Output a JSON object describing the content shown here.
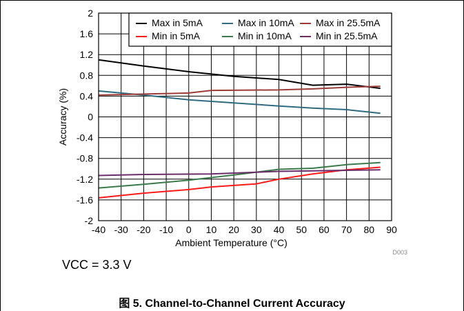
{
  "chart_data": {
    "type": "line",
    "xlabel": "Ambient Temperature (°C)",
    "ylabel": "Accuracy (%)",
    "xlim": [
      -40,
      90
    ],
    "ylim": [
      -2,
      2
    ],
    "xticks": [
      -40,
      -30,
      -20,
      -10,
      0,
      10,
      20,
      30,
      40,
      50,
      60,
      70,
      80,
      90
    ],
    "yticks": [
      2,
      1.6,
      1.2,
      0.8,
      0.4,
      0,
      -0.4,
      -0.8,
      -1.2,
      -1.6,
      -2
    ],
    "xtick_labels": [
      "-40",
      "-30",
      "-20",
      "-10",
      "0",
      "10",
      "20",
      "30",
      "40",
      "50",
      "60",
      "70",
      "80",
      "90"
    ],
    "ytick_labels": [
      "2",
      "1.6",
      "1.2",
      "0.8",
      "0.4",
      "0",
      "-0.4",
      "-0.8",
      "-1.2",
      "-1.6",
      "-2"
    ],
    "grid": true,
    "legend_position": "top-right",
    "series": [
      {
        "name": "Max in 5mA",
        "color": "#000000",
        "points": [
          [
            -40,
            1.1
          ],
          [
            -20,
            0.98
          ],
          [
            0,
            0.87
          ],
          [
            20,
            0.78
          ],
          [
            40,
            0.72
          ],
          [
            55,
            0.61
          ],
          [
            70,
            0.63
          ],
          [
            85,
            0.55
          ]
        ]
      },
      {
        "name": "Max in 10mA",
        "color": "#2e6b80",
        "points": [
          [
            -40,
            0.5
          ],
          [
            -20,
            0.42
          ],
          [
            0,
            0.33
          ],
          [
            20,
            0.27
          ],
          [
            40,
            0.21
          ],
          [
            55,
            0.17
          ],
          [
            70,
            0.14
          ],
          [
            85,
            0.07
          ]
        ]
      },
      {
        "name": "Max in 25.5mA",
        "color": "#9c3b38",
        "points": [
          [
            -40,
            0.42
          ],
          [
            -20,
            0.44
          ],
          [
            0,
            0.46
          ],
          [
            10,
            0.51
          ],
          [
            40,
            0.52
          ],
          [
            55,
            0.54
          ],
          [
            70,
            0.57
          ],
          [
            85,
            0.59
          ]
        ]
      },
      {
        "name": "Min in 5mA",
        "color": "#ff1a1a",
        "points": [
          [
            -40,
            -1.56
          ],
          [
            -20,
            -1.47
          ],
          [
            0,
            -1.4
          ],
          [
            10,
            -1.35
          ],
          [
            30,
            -1.29
          ],
          [
            40,
            -1.2
          ],
          [
            55,
            -1.1
          ],
          [
            70,
            -1.02
          ],
          [
            85,
            -0.97
          ]
        ]
      },
      {
        "name": "Min in 10mA",
        "color": "#3a7a4a",
        "points": [
          [
            -40,
            -1.37
          ],
          [
            -20,
            -1.3
          ],
          [
            0,
            -1.22
          ],
          [
            20,
            -1.12
          ],
          [
            40,
            -1.01
          ],
          [
            55,
            -0.99
          ],
          [
            70,
            -0.92
          ],
          [
            85,
            -0.88
          ]
        ]
      },
      {
        "name": "Min in 25.5mA",
        "color": "#6a2d6a",
        "points": [
          [
            -40,
            -1.13
          ],
          [
            -20,
            -1.11
          ],
          [
            10,
            -1.1
          ],
          [
            40,
            -1.05
          ],
          [
            55,
            -1.04
          ],
          [
            70,
            -1.03
          ],
          [
            85,
            -1.02
          ]
        ]
      }
    ],
    "legend": [
      [
        "Max in 5mA",
        "Max in 10mA",
        "Max in 25.5mA"
      ],
      [
        "Min in 5mA",
        "Min in 10mA",
        "Min in 25.5mA"
      ]
    ],
    "id_label": "D003"
  },
  "vcc_note": "VCC = 3.3 V",
  "caption": "图 5. Channel-to-Channel Current Accuracy"
}
